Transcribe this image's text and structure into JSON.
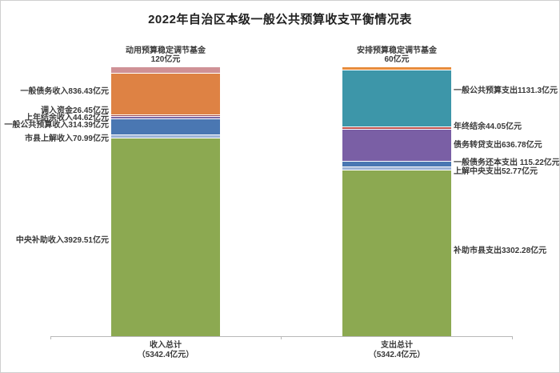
{
  "title": "2022年自治区本级一般公共预算收支平衡情况表",
  "unit": "亿元",
  "top_labels": {
    "left": {
      "line1": "动用预算稳定调节基金",
      "line2": "120亿元"
    },
    "right": {
      "line1": "安排预算稳定调节基金",
      "line2": "60亿元"
    }
  },
  "left_labels": [
    "一般债务收入836.43亿元",
    "调入资金26.45亿元",
    "上年结余收入44.62亿元",
    "一般公共预算收入314.39亿元",
    "市县上解收入70.99亿元",
    "中央补助收入3929.51亿元"
  ],
  "right_labels": [
    "一般公共预算支出1131.3亿元",
    "年终结余44.05亿元",
    "债务转贷支出636.78亿元",
    "一般债务还本支出 115.22亿元",
    "上解中央支出52.77亿元",
    "补助市县支出3302.28亿元"
  ],
  "x_axis": {
    "left": {
      "line1": "收入总计",
      "line2": "（5342.4亿元）"
    },
    "right": {
      "line1": "支出总计",
      "line2": "（5342.4亿元）"
    }
  },
  "colors": {
    "green": "#8CA951",
    "light_blue": "#9DB3D6",
    "blue": "#4A77B2",
    "purple": "#7A5FA5",
    "muted_purple": "#7B68A6",
    "red": "#C0504D",
    "dark_red": "#9E4045",
    "teal": "#3D96A9",
    "orange": "#DE8244",
    "bright_orange": "#E78C3C",
    "pink": "#CF9196",
    "axis": "#B8B8B8"
  },
  "chart_data": {
    "type": "bar",
    "subtype": "stacked-vertical",
    "title": "2022年自治区本级一般公共预算收支平衡情况表",
    "unit": "亿元",
    "categories": [
      "收入总计",
      "支出总计"
    ],
    "category_totals": [
      5342.4,
      5342.4
    ],
    "grid": false,
    "legend": "none",
    "bars": [
      {
        "name": "收入总计",
        "total": 5342.4,
        "segments_top_to_bottom": [
          {
            "label": "动用预算稳定调节基金",
            "value": 120,
            "color": "#CF9196"
          },
          {
            "label": "一般债务收入",
            "value": 836.43,
            "color": "#DE8244"
          },
          {
            "label": "调入资金",
            "value": 26.45,
            "color": "#9E4045"
          },
          {
            "label": "上年结余收入",
            "value": 44.62,
            "color": "#7B68A6"
          },
          {
            "label": "一般公共预算收入",
            "value": 314.39,
            "color": "#4A77B2"
          },
          {
            "label": "市县上解收入",
            "value": 70.99,
            "color": "#9DB3D6"
          },
          {
            "label": "中央补助收入",
            "value": 3929.51,
            "color": "#8CA951"
          }
        ]
      },
      {
        "name": "支出总计",
        "total": 5342.4,
        "segments_top_to_bottom": [
          {
            "label": "安排预算稳定调节基金",
            "value": 60,
            "color": "#E78C3C"
          },
          {
            "label": "一般公共预算支出",
            "value": 1131.3,
            "color": "#3D96A9"
          },
          {
            "label": "年终结余",
            "value": 44.05,
            "color": "#C0504D"
          },
          {
            "label": "债务转贷支出",
            "value": 636.78,
            "color": "#7A5FA5"
          },
          {
            "label": "一般债务还本支出",
            "value": 115.22,
            "color": "#4A77B2"
          },
          {
            "label": "上解中央支出",
            "value": 52.77,
            "color": "#9DB3D6"
          },
          {
            "label": "补助市县支出",
            "value": 3302.28,
            "color": "#8CA951"
          }
        ]
      }
    ]
  }
}
